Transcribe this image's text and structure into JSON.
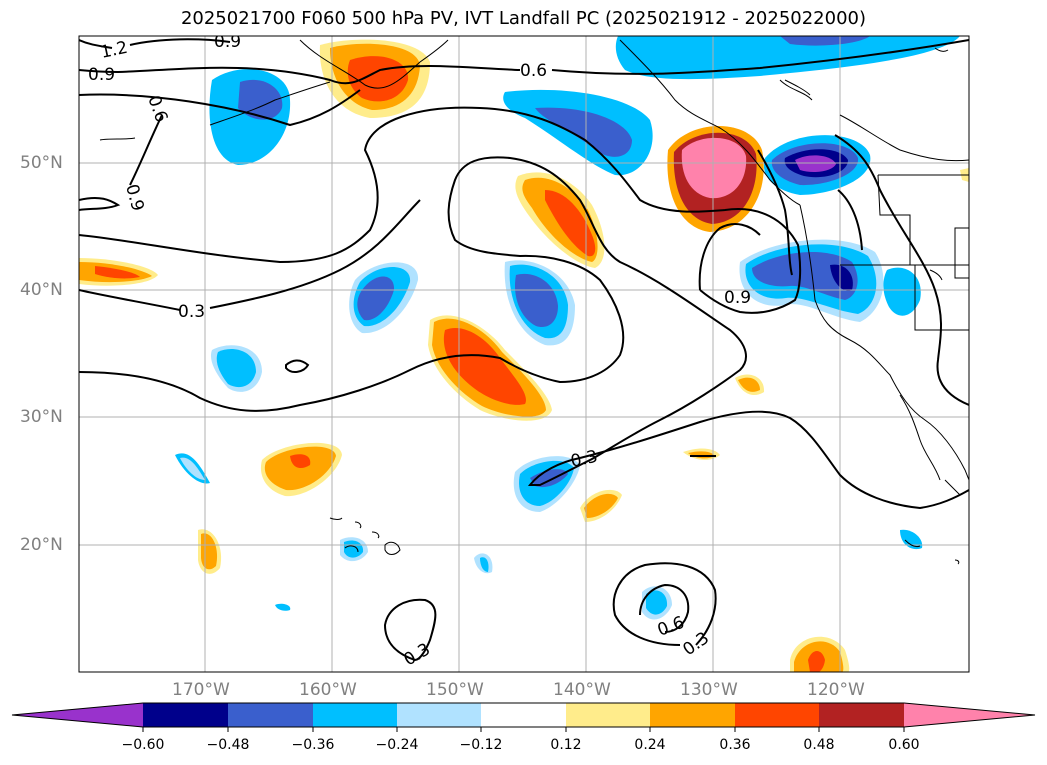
{
  "title": "2025021700 F060 500 hPa PV, IVT Landfall PC (2025021912 - 2025022000)",
  "lon_labels": [
    "170°W",
    "160°W",
    "150°W",
    "140°W",
    "130°W",
    "120°W"
  ],
  "lat_labels": [
    "50°N",
    "40°N",
    "30°N",
    "20°N"
  ],
  "contour_labels": [
    "1.2",
    "0.9",
    "0.9",
    "0.6",
    "0.6",
    "0.9",
    "0.3",
    "0.9",
    "0.3",
    "0.6",
    "0.3",
    "0.3"
  ],
  "colorbar": {
    "ticks": [
      "−0.60",
      "−0.48",
      "−0.36",
      "−0.24",
      "−0.12",
      "0.12",
      "0.24",
      "0.36",
      "0.48",
      "0.60"
    ],
    "colors": [
      "#9932cc",
      "#00008b",
      "#3a5fcd",
      "#00bfff",
      "#b0e2ff",
      "#ffffff",
      "#ffec8b",
      "#ffa500",
      "#ff4500",
      "#b22222",
      "#ff82ab"
    ]
  }
}
